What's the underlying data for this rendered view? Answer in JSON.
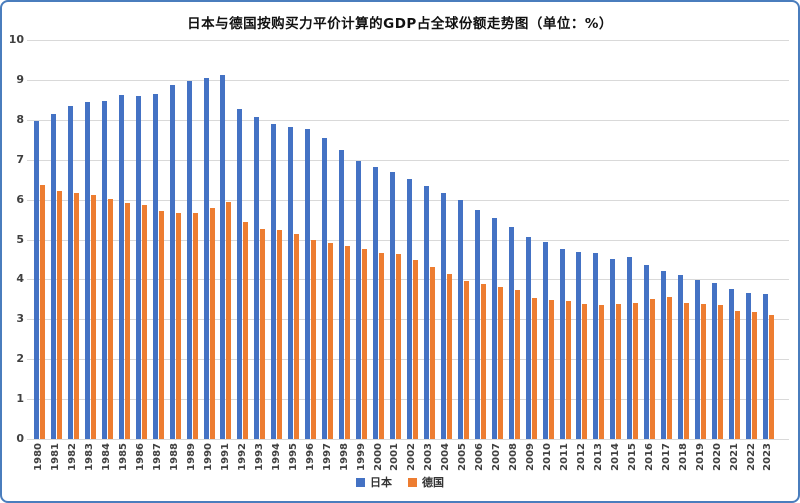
{
  "title": "日本与德国按购买力平价计算的GDP占全球份额走势图（单位：%）",
  "colors": {
    "frame_border": "#4a7dbd",
    "gridline": "#d9d9d9",
    "axis_text": "#404040",
    "japan_blue": "#4472C4",
    "germany_orange": "#ED7D31"
  },
  "chart_data": {
    "type": "bar",
    "title": "日本与德国按购买力平价计算的GDP占全球份额走势图（单位：%）",
    "unit": "%",
    "categories": [
      "1980",
      "1981",
      "1982",
      "1983",
      "1984",
      "1985",
      "1986",
      "1987",
      "1988",
      "1989",
      "1990",
      "1991",
      "1992",
      "1993",
      "1994",
      "1995",
      "1996",
      "1997",
      "1998",
      "1999",
      "2000",
      "2001",
      "2002",
      "2003",
      "2004",
      "2005",
      "2006",
      "2007",
      "2008",
      "2009",
      "2010",
      "2011",
      "2012",
      "2013",
      "2014",
      "2015",
      "2016",
      "2017",
      "2018",
      "2019",
      "2020",
      "2021",
      "2022",
      "2023"
    ],
    "series": [
      {
        "id": "japan",
        "name": "日本",
        "color": "#4472C4",
        "values": [
          7.97,
          8.14,
          8.35,
          8.45,
          8.46,
          8.62,
          8.6,
          8.66,
          8.88,
          8.97,
          9.04,
          9.13,
          8.26,
          8.06,
          7.89,
          7.82,
          7.77,
          7.55,
          7.24,
          6.96,
          6.83,
          6.69,
          6.51,
          6.35,
          6.17,
          5.98,
          5.74,
          5.55,
          5.32,
          5.06,
          4.95,
          4.77,
          4.69,
          4.67,
          4.52,
          4.57,
          4.37,
          4.2,
          4.1,
          3.98,
          3.91,
          3.76,
          3.66,
          3.63
        ]
      },
      {
        "id": "germany",
        "name": "德国",
        "color": "#ED7D31",
        "values": [
          6.36,
          6.21,
          6.17,
          6.11,
          6.01,
          5.92,
          5.87,
          5.71,
          5.67,
          5.66,
          5.79,
          5.95,
          5.45,
          5.27,
          5.23,
          5.14,
          5.0,
          4.91,
          4.84,
          4.77,
          4.67,
          4.63,
          4.5,
          4.3,
          4.14,
          3.96,
          3.89,
          3.81,
          3.74,
          3.54,
          3.49,
          3.47,
          3.38,
          3.35,
          3.38,
          3.42,
          3.52,
          3.56,
          3.42,
          3.38,
          3.35,
          3.22,
          3.18,
          3.1
        ]
      }
    ],
    "ylim": [
      0,
      10
    ],
    "yticks": [
      0,
      1,
      2,
      3,
      4,
      5,
      6,
      7,
      8,
      9,
      10
    ],
    "grid": true,
    "legend_position": "bottom",
    "x_label_rotation": 90
  }
}
